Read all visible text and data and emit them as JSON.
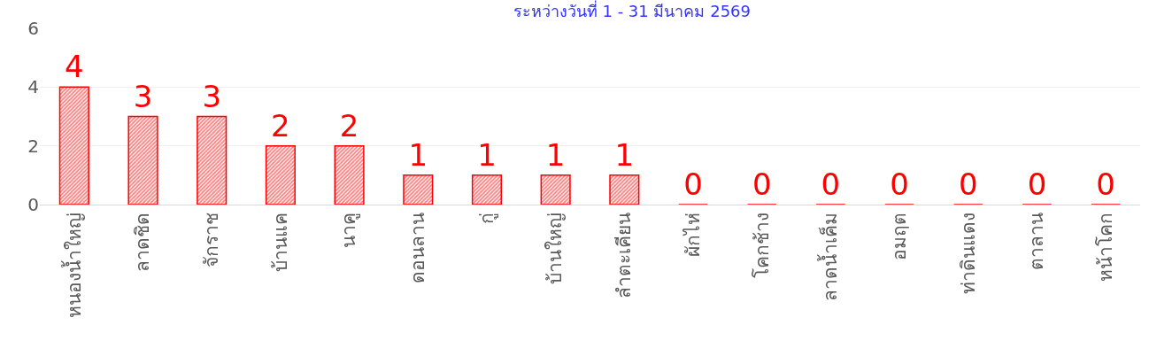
{
  "chart_data": {
    "type": "bar",
    "title": "ระหว่างวันที่ 1 - 31 มีนาคม 2569",
    "categories": [
      "หนองน้ำใหญ่",
      "ลาดชิด",
      "จักราช",
      "บ้านแค",
      "นาคู",
      "ดอนลาน",
      "กู่",
      "บ้านใหญ่",
      "ลำตะเคียน",
      "ผักไห่",
      "โคกช้าง",
      "ลาดน้ำเค็ม",
      "อมฤต",
      "ท่าดินแดง",
      "ตาลาน",
      "หน้าโคก"
    ],
    "values": [
      4,
      3,
      3,
      2,
      2,
      1,
      1,
      1,
      1,
      0,
      0,
      0,
      0,
      0,
      0,
      0
    ],
    "color": "#ff0000",
    "ylim": [
      0,
      6
    ],
    "yticks": [
      0,
      2,
      4,
      6
    ],
    "grid": "y",
    "data_labels": true,
    "legend": false
  }
}
